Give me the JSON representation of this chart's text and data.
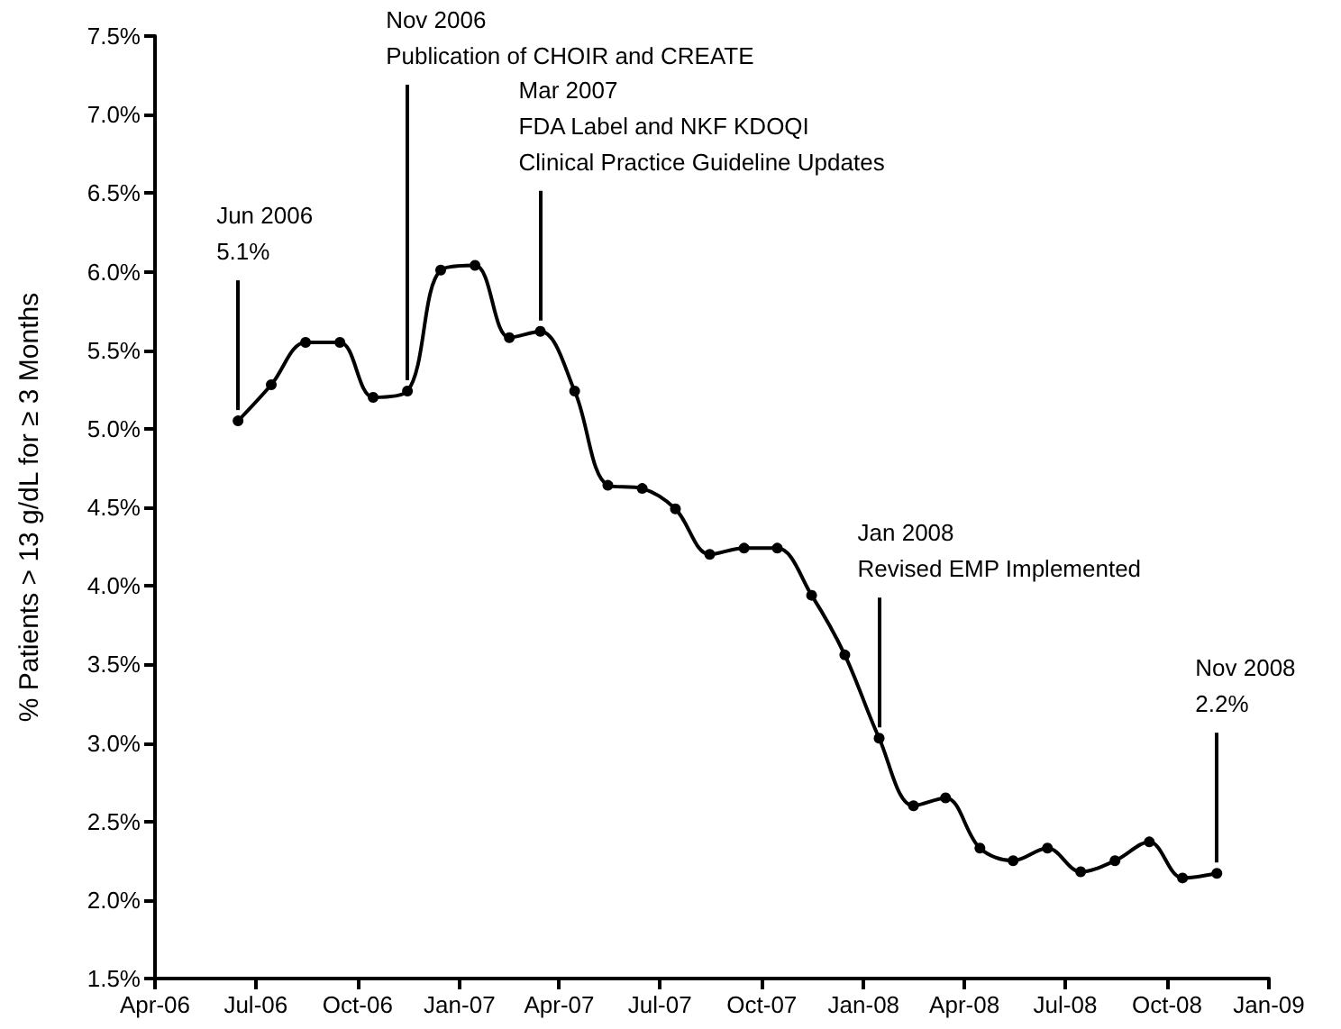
{
  "chart_data": {
    "type": "line",
    "ylabel": "% Patients > 13 g/dL for ≥ 3 Months",
    "x": [
      "2006-06-15",
      "2006-07-15",
      "2006-08-15",
      "2006-09-15",
      "2006-10-15",
      "2006-11-15",
      "2006-12-15",
      "2007-01-15",
      "2007-02-15",
      "2007-03-15",
      "2007-04-15",
      "2007-05-15",
      "2007-06-15",
      "2007-07-15",
      "2007-08-15",
      "2007-09-15",
      "2007-10-15",
      "2007-11-15",
      "2007-12-15",
      "2008-01-15",
      "2008-02-15",
      "2008-03-15",
      "2008-04-15",
      "2008-05-15",
      "2008-06-15",
      "2008-07-15",
      "2008-08-15",
      "2008-09-15",
      "2008-10-15",
      "2008-11-15"
    ],
    "series": [
      {
        "color": "#000000",
        "values": [
          5.05,
          5.28,
          5.55,
          5.55,
          5.2,
          5.24,
          6.01,
          6.04,
          5.58,
          5.62,
          5.24,
          4.64,
          4.62,
          4.49,
          4.2,
          4.24,
          4.24,
          3.94,
          3.56,
          3.03,
          2.6,
          2.65,
          2.33,
          2.25,
          2.33,
          2.18,
          2.25,
          2.37,
          2.14,
          2.17
        ]
      }
    ],
    "xlim": [
      "2006-04",
      "2009-01"
    ],
    "xticks": [
      {
        "value": "2006-04",
        "label": "Apr-06"
      },
      {
        "value": "2006-07",
        "label": "Jul-06"
      },
      {
        "value": "2006-10",
        "label": "Oct-06"
      },
      {
        "value": "2007-01",
        "label": "Jan-07"
      },
      {
        "value": "2007-04",
        "label": "Apr-07"
      },
      {
        "value": "2007-07",
        "label": "Jul-07"
      },
      {
        "value": "2007-10",
        "label": "Oct-07"
      },
      {
        "value": "2008-01",
        "label": "Jan-08"
      },
      {
        "value": "2008-04",
        "label": "Apr-08"
      },
      {
        "value": "2008-07",
        "label": "Jul-08"
      },
      {
        "value": "2008-10",
        "label": "Oct-08"
      },
      {
        "value": "2009-01",
        "label": "Jan-09"
      }
    ],
    "ylim": [
      1.5,
      7.5
    ],
    "yticks": [
      {
        "value": 1.5,
        "label": "1.5%"
      },
      {
        "value": 2.0,
        "label": "2.0%"
      },
      {
        "value": 2.5,
        "label": "2.5%"
      },
      {
        "value": 3.0,
        "label": "3.0%"
      },
      {
        "value": 3.5,
        "label": "3.5%"
      },
      {
        "value": 4.0,
        "label": "4.0%"
      },
      {
        "value": 4.5,
        "label": "4.5%"
      },
      {
        "value": 5.0,
        "label": "5.0%"
      },
      {
        "value": 5.5,
        "label": "5.5%"
      },
      {
        "value": 6.0,
        "label": "6.0%"
      },
      {
        "value": 6.5,
        "label": "6.5%"
      },
      {
        "value": 7.0,
        "label": "7.0%"
      },
      {
        "value": 7.5,
        "label": "7.5%"
      }
    ],
    "annotations": [
      {
        "text": "Jun 2006\n5.1%",
        "x": "2006-06-15",
        "y": 5.05
      },
      {
        "text": "Nov 2006\nPublication of CHOIR and CREATE",
        "x": "2006-11-15",
        "y": 5.24
      },
      {
        "text": "Mar 2007\nFDA Label and NKF KDOQI\nClinical Practice Guideline Updates",
        "x": "2007-03-15",
        "y": 5.62
      },
      {
        "text": "Jan 2008\nRevised EMP Implemented",
        "x": "2008-01-15",
        "y": 3.03
      },
      {
        "text": "Nov 2008\n2.2%",
        "x": "2008-11-15",
        "y": 2.17
      }
    ],
    "grid": false,
    "marker": "circle",
    "line_style": "solid"
  }
}
